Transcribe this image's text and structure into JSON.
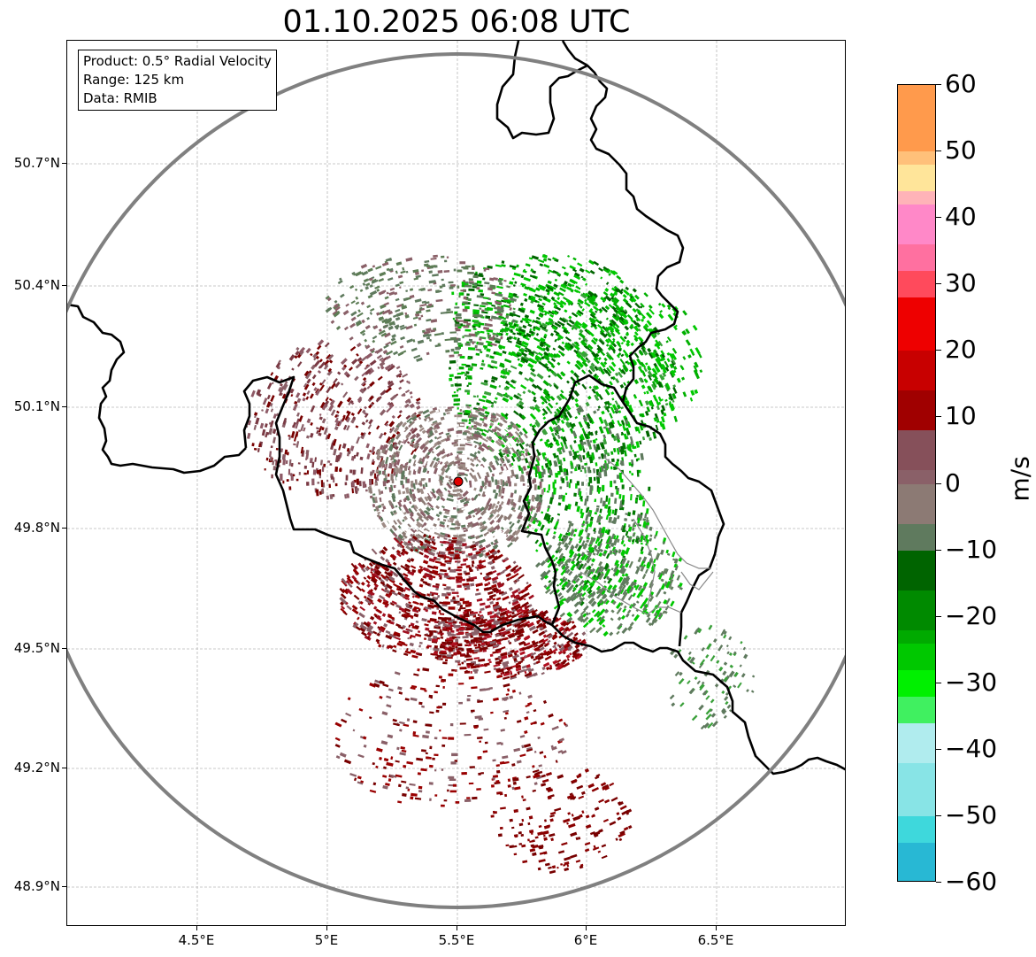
{
  "title": "01.10.2025 06:08 UTC",
  "info_box": {
    "product": "Product: 0.5° Radial Velocity",
    "range": "Range: 125 km",
    "data": "Data: RMIB"
  },
  "axes": {
    "lat_labels": [
      "50.7°N",
      "50.4°N",
      "50.1°N",
      "49.8°N",
      "49.5°N",
      "49.2°N",
      "48.9°N"
    ],
    "lon_labels": [
      "4.5°E",
      "5°E",
      "5.5°E",
      "6°E",
      "6.5°E"
    ]
  },
  "colorbar": {
    "unit": "m/s",
    "tick_labels": [
      "60",
      "50",
      "40",
      "30",
      "20",
      "10",
      "0",
      "−10",
      "−20",
      "−30",
      "−40",
      "−50",
      "−60"
    ],
    "colors": {
      "outbound_high": "#ff9a4c",
      "outbound_yellow": "#ffe59a",
      "outbound_pink": "#ff88c8",
      "outbound_red": "#ff4a5c",
      "outbound_bright_red": "#ee0000",
      "outbound_dark_red": "#780000",
      "near_zero_brown": "#8a6068",
      "near_zero_gray": "#8c7a74",
      "inbound_gray_green": "#5f7a5e",
      "inbound_dark_green": "#006400",
      "inbound_green": "#00c800",
      "inbound_light_green": "#8af09a",
      "inbound_cyan": "#3ed8dc",
      "inbound_blue": "#1e74c8"
    }
  },
  "radar_site": {
    "lat": 49.914,
    "lon": 5.506,
    "marker_color": "#e00000"
  },
  "range_ring_color": "#808080"
}
